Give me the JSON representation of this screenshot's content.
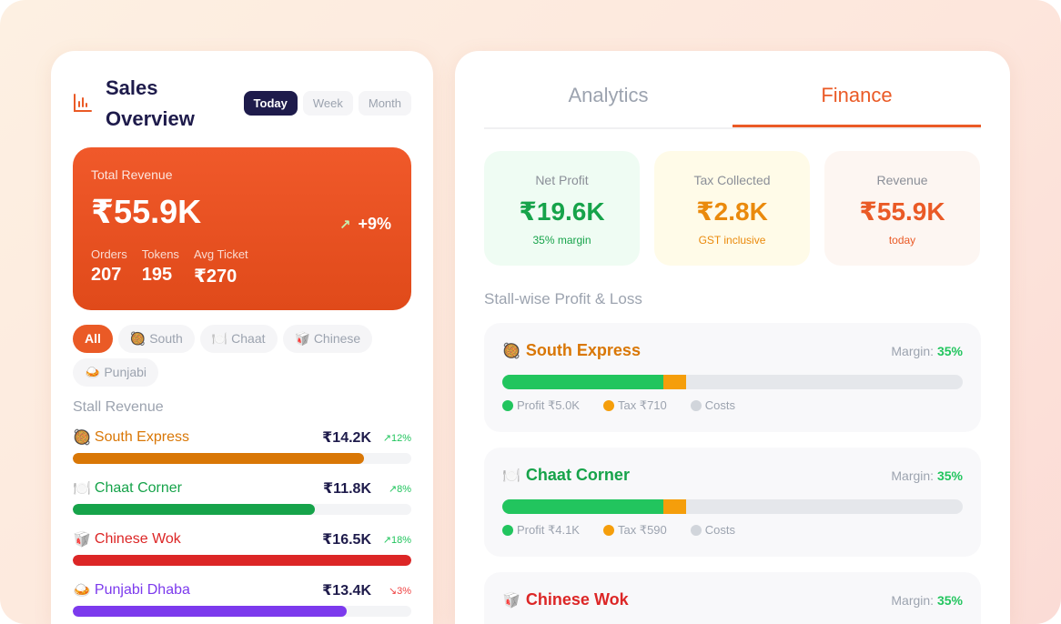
{
  "sales": {
    "title": "Sales Overview",
    "periods": [
      "Today",
      "Week",
      "Month"
    ],
    "total_label": "Total Revenue",
    "total": "₹55.9K",
    "change": "+9%",
    "stats": [
      {
        "k": "Orders",
        "v": "207"
      },
      {
        "k": "Tokens",
        "v": "195"
      },
      {
        "k": "Avg Ticket",
        "v": "₹270"
      }
    ],
    "chips": [
      "All",
      "🥘 South",
      "🍽️ Chaat",
      "🥡 Chinese",
      "🍛 Punjabi"
    ],
    "section": "Stall Revenue",
    "stalls": [
      {
        "icon": "🥘",
        "name": "South Express",
        "amount": "₹14.2K",
        "change": "↗12%",
        "up": true,
        "share": 0.86,
        "color": "#d97706"
      },
      {
        "icon": "🍽️",
        "name": "Chaat Corner",
        "amount": "₹11.8K",
        "change": "↗8%",
        "up": true,
        "share": 0.715,
        "color": "#16a34a"
      },
      {
        "icon": "🥡",
        "name": "Chinese Wok",
        "amount": "₹16.5K",
        "change": "↗18%",
        "up": true,
        "share": 1.0,
        "color": "#dc2626"
      },
      {
        "icon": "🍛",
        "name": "Punjabi Dhaba",
        "amount": "₹13.4K",
        "change": "↘3%",
        "up": false,
        "share": 0.81,
        "color": "#7c3aed"
      }
    ]
  },
  "finance": {
    "tabs": [
      "Analytics",
      "Finance"
    ],
    "kpis": [
      {
        "k": "Net Profit",
        "v": "₹19.6K",
        "s": "35% margin",
        "bg": "#effcf3",
        "c": "#16a34a"
      },
      {
        "k": "Tax Collected",
        "v": "₹2.8K",
        "s": "GST inclusive",
        "bg": "#fffbe8",
        "c": "#ea8a0c"
      },
      {
        "k": "Revenue",
        "v": "₹55.9K",
        "s": "today",
        "bg": "#fdf6f2",
        "c": "#ea5a26"
      }
    ],
    "section": "Stall-wise Profit & Loss",
    "margin_label": "Margin:",
    "stalls": [
      {
        "icon": "🥘",
        "name": "South Express",
        "color": "#d97706",
        "margin": "35%",
        "profit": "Profit ₹5.0K",
        "tax": "Tax ₹710",
        "costs": "Costs",
        "profit_frac": 0.35,
        "tax_frac": 0.05
      },
      {
        "icon": "🍽️",
        "name": "Chaat Corner",
        "color": "#16a34a",
        "margin": "35%",
        "profit": "Profit ₹4.1K",
        "tax": "Tax ₹590",
        "costs": "Costs",
        "profit_frac": 0.35,
        "tax_frac": 0.05
      },
      {
        "icon": "🥡",
        "name": "Chinese Wok",
        "color": "#dc2626",
        "margin": "35%"
      }
    ]
  }
}
